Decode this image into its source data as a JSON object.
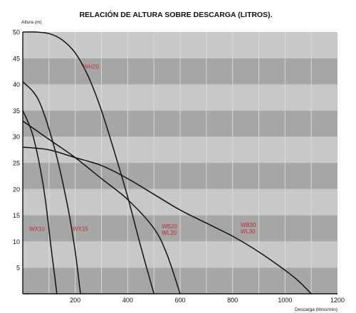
{
  "chart_data": {
    "type": "line",
    "title": "RELACIÓN DE ALTURA SOBRE DESCARGA (LITROS).",
    "xlabel": "Descarga (litros/min)",
    "ylabel": "Altura (m)",
    "xlim": [
      0,
      1200
    ],
    "ylim": [
      0,
      50
    ],
    "x_ticks": [
      200,
      400,
      600,
      800,
      1000,
      1200
    ],
    "y_ticks": [
      5,
      10,
      15,
      20,
      25,
      30,
      35,
      40,
      45,
      50
    ],
    "grid": true,
    "legend": "none",
    "colors": {
      "band_dark": "#a6a6a6",
      "band_light": "#c8c8c8",
      "gridline": "#d9d9d9",
      "line": "#111111",
      "label": "#c0272d"
    },
    "series": [
      {
        "name": "WX10",
        "x": [
          0,
          40,
          80,
          110,
          130
        ],
        "y": [
          35,
          30,
          20,
          8,
          0
        ]
      },
      {
        "name": "WX15",
        "x": [
          0,
          60,
          120,
          170,
          200,
          220
        ],
        "y": [
          40.5,
          37,
          28,
          17,
          8,
          0
        ]
      },
      {
        "name": "WH20",
        "x": [
          0,
          50,
          100,
          150,
          200,
          250,
          300,
          350,
          400,
          450,
          500
        ],
        "y": [
          50,
          50,
          49.7,
          48.5,
          46,
          41.5,
          35,
          27,
          18.5,
          9,
          0
        ]
      },
      {
        "name": "WB20\nWL20",
        "x": [
          0,
          100,
          200,
          300,
          400,
          500,
          550,
          600
        ],
        "y": [
          33,
          29.5,
          26,
          22,
          18,
          12.5,
          7.5,
          0
        ]
      },
      {
        "name": "WB30\nWL30",
        "x": [
          0,
          100,
          200,
          300,
          400,
          500,
          600,
          700,
          800,
          900,
          1000,
          1050,
          1100
        ],
        "y": [
          28,
          27.5,
          26,
          24.5,
          22,
          19,
          16,
          13.5,
          11,
          8,
          4.5,
          2.5,
          0
        ]
      }
    ],
    "series_labels": [
      {
        "name": "WH20",
        "text": "WH20",
        "x": 230,
        "y": 43
      },
      {
        "name": "WX10",
        "text": "WX10",
        "x": 25,
        "y": 12
      },
      {
        "name": "WX15",
        "text": "WX15",
        "x": 190,
        "y": 12
      },
      {
        "name": "WB20\nWL20",
        "lines": [
          "WB20",
          "WL20"
        ],
        "x": 530,
        "y": 12.5
      },
      {
        "name": "WB30\nWL30",
        "lines": [
          "WB30",
          "WL30"
        ],
        "x": 830,
        "y": 12.8
      }
    ]
  }
}
